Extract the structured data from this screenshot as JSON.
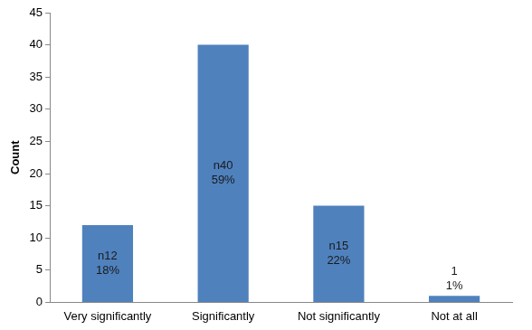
{
  "chart_data": {
    "type": "bar",
    "y_label": "Count",
    "categories": [
      "Very significantly",
      "Significantly",
      "Not significantly",
      "Not at all"
    ],
    "values": [
      12,
      40,
      15,
      1
    ],
    "value_labels": [
      "n12\n18%",
      "n40\n59%",
      "n15\n22%",
      "1\n1%"
    ],
    "data_labels": true,
    "color": "#4f81bd",
    "ylim": [
      0,
      45
    ],
    "yticks": [
      0,
      5,
      10,
      15,
      20,
      25,
      30,
      35,
      40,
      45
    ],
    "grid": false
  }
}
